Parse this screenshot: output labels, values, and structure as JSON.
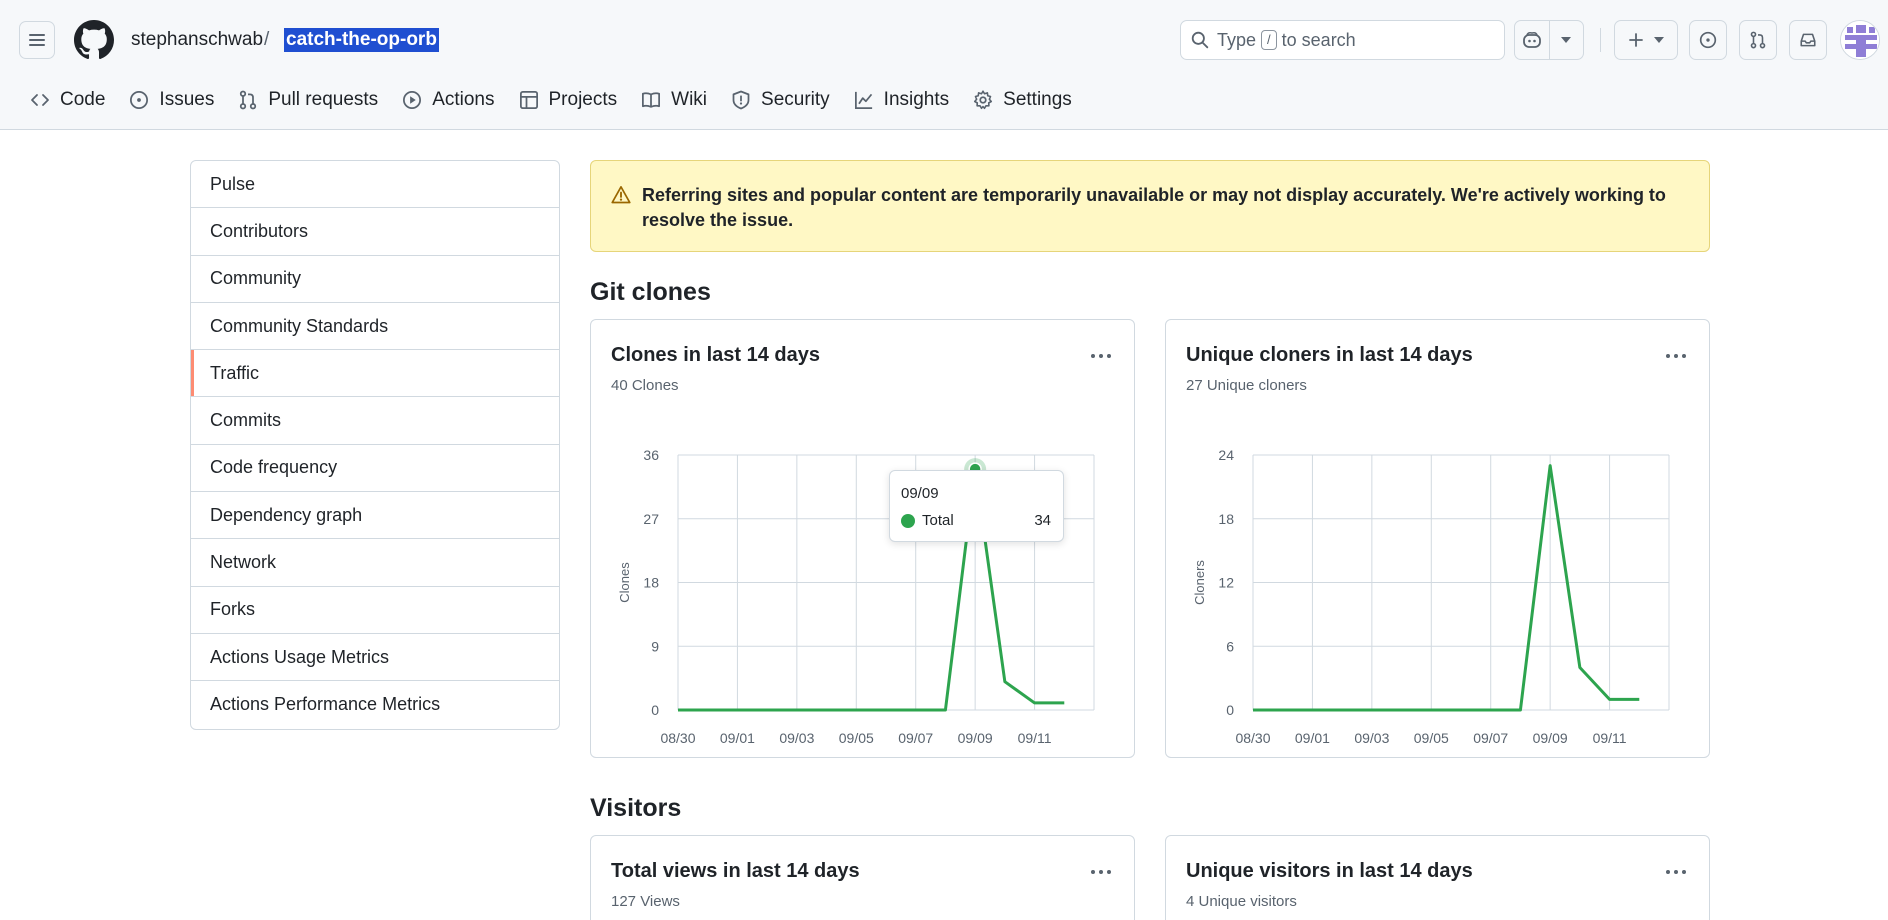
{
  "header": {
    "owner": "stephanschwab",
    "separator": "/",
    "repo": "catch-the-op-orb",
    "search": {
      "prefix": "Type",
      "key": "/",
      "suffix": "to search"
    }
  },
  "repo_nav": [
    {
      "label": "Code",
      "icon": "code-icon"
    },
    {
      "label": "Issues",
      "icon": "issue-opened-icon"
    },
    {
      "label": "Pull requests",
      "icon": "git-pull-request-icon"
    },
    {
      "label": "Actions",
      "icon": "play-icon"
    },
    {
      "label": "Projects",
      "icon": "table-icon"
    },
    {
      "label": "Wiki",
      "icon": "book-icon"
    },
    {
      "label": "Security",
      "icon": "shield-icon"
    },
    {
      "label": "Insights",
      "icon": "graph-icon"
    },
    {
      "label": "Settings",
      "icon": "gear-icon"
    }
  ],
  "sidebar": {
    "items": [
      {
        "label": "Pulse"
      },
      {
        "label": "Contributors"
      },
      {
        "label": "Community"
      },
      {
        "label": "Community Standards"
      },
      {
        "label": "Traffic",
        "active": true
      },
      {
        "label": "Commits"
      },
      {
        "label": "Code frequency"
      },
      {
        "label": "Dependency graph"
      },
      {
        "label": "Network"
      },
      {
        "label": "Forks"
      },
      {
        "label": "Actions Usage Metrics"
      },
      {
        "label": "Actions Performance Metrics"
      }
    ]
  },
  "flash": {
    "message": "Referring sites and popular content are temporarily unavailable or may not display accurately. We're actively working to resolve the issue."
  },
  "sections": {
    "git_clones": "Git clones",
    "visitors": "Visitors"
  },
  "cards": {
    "clones": {
      "title": "Clones in last 14 days",
      "subtitle": "40 Clones"
    },
    "unique_cloners": {
      "title": "Unique cloners in last 14 days",
      "subtitle": "27 Unique cloners"
    },
    "total_views": {
      "title": "Total views in last 14 days",
      "subtitle": "127 Views"
    },
    "unique_visitors": {
      "title": "Unique visitors in last 14 days",
      "subtitle": "4 Unique visitors"
    }
  },
  "tooltip": {
    "date": "09/09",
    "label": "Total",
    "value": "34"
  },
  "colors": {
    "accent_green": "#2da44e",
    "active_marker": "#fd8c73",
    "flash_bg": "#fff8c5"
  },
  "chart_data": [
    {
      "type": "line",
      "title": "Clones in last 14 days",
      "ylabel": "Clones",
      "ylim": [
        0,
        36
      ],
      "yticks": [
        0,
        9,
        18,
        27,
        36
      ],
      "xticks": [
        "08/30",
        "09/01",
        "09/03",
        "09/05",
        "09/07",
        "09/09",
        "09/11"
      ],
      "x": [
        "08/30",
        "08/31",
        "09/01",
        "09/02",
        "09/03",
        "09/04",
        "09/05",
        "09/06",
        "09/07",
        "09/08",
        "09/09",
        "09/10",
        "09/11",
        "09/12"
      ],
      "series": [
        {
          "values": [
            0,
            0,
            0,
            0,
            0,
            0,
            0,
            0,
            0,
            0,
            34,
            4,
            1,
            1
          ]
        }
      ],
      "highlight_index": 10
    },
    {
      "type": "line",
      "title": "Unique cloners in last 14 days",
      "ylabel": "Cloners",
      "ylim": [
        0,
        24
      ],
      "yticks": [
        0,
        6,
        12,
        18,
        24
      ],
      "xticks": [
        "08/30",
        "09/01",
        "09/03",
        "09/05",
        "09/07",
        "09/09",
        "09/11"
      ],
      "x": [
        "08/30",
        "08/31",
        "09/01",
        "09/02",
        "09/03",
        "09/04",
        "09/05",
        "09/06",
        "09/07",
        "09/08",
        "09/09",
        "09/10",
        "09/11",
        "09/12"
      ],
      "series": [
        {
          "values": [
            0,
            0,
            0,
            0,
            0,
            0,
            0,
            0,
            0,
            0,
            23,
            4,
            1,
            1
          ]
        }
      ]
    }
  ]
}
